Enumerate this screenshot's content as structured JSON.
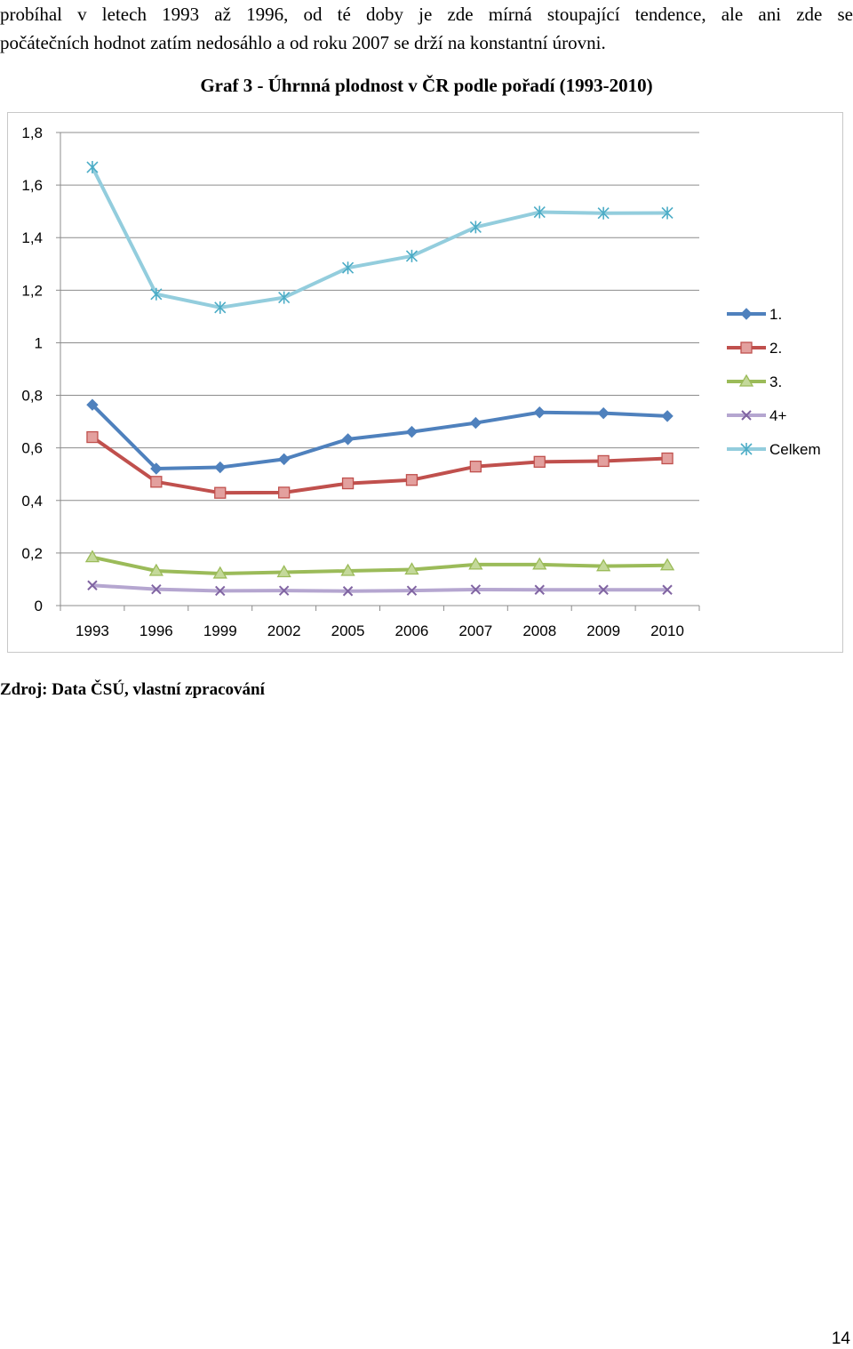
{
  "page": {
    "paragraph_lines": [
      "probíhal v letech 1993 až 1996, od té doby je zde mírná stoupající tendence, ale ani zde se",
      "počátečních hodnot zatím nedosáhlo a od roku 2007 se drží na konstantní úrovni."
    ],
    "source": "Zdroj: Data ČSÚ, vlastní zpracování",
    "page_number": "14"
  },
  "chart_data": {
    "type": "line",
    "title": "Graf 3 - Úhrnná plodnost v ČR podle pořadí (1993-2010)",
    "xlabel": "",
    "ylabel": "",
    "categories": [
      "1993",
      "1996",
      "1999",
      "2002",
      "2005",
      "2006",
      "2007",
      "2008",
      "2009",
      "2010"
    ],
    "ylim": [
      0,
      1.8
    ],
    "yticks": [
      0,
      0.2,
      0.4,
      0.6,
      0.8,
      1.0,
      1.2,
      1.4,
      1.6,
      1.8
    ],
    "ytick_labels": [
      "0",
      "0,2",
      "0,4",
      "0,6",
      "0,8",
      "1",
      "1,2",
      "1,4",
      "1,6",
      "1,8"
    ],
    "grid": true,
    "legend_position": "right",
    "series": [
      {
        "name": "1.",
        "color": "#4f81bd",
        "marker": "diamond",
        "values": [
          0.764,
          0.521,
          0.526,
          0.557,
          0.633,
          0.661,
          0.695,
          0.735,
          0.732,
          0.721
        ]
      },
      {
        "name": "2.",
        "color": "#c0504d",
        "marker": "square",
        "values": [
          0.641,
          0.471,
          0.429,
          0.43,
          0.465,
          0.478,
          0.529,
          0.547,
          0.55,
          0.56
        ]
      },
      {
        "name": "3.",
        "color": "#9bbb59",
        "marker": "triangle",
        "values": [
          0.184,
          0.132,
          0.122,
          0.127,
          0.132,
          0.137,
          0.156,
          0.156,
          0.15,
          0.153
        ]
      },
      {
        "name": "4+",
        "color": "#8064a2",
        "marker": "x",
        "values": [
          0.077,
          0.062,
          0.056,
          0.057,
          0.055,
          0.057,
          0.061,
          0.06,
          0.06,
          0.06
        ]
      },
      {
        "name": "Celkem",
        "color": "#4bacc6",
        "marker": "star",
        "values": [
          1.668,
          1.185,
          1.134,
          1.172,
          1.285,
          1.33,
          1.44,
          1.497,
          1.493,
          1.494
        ]
      }
    ]
  }
}
